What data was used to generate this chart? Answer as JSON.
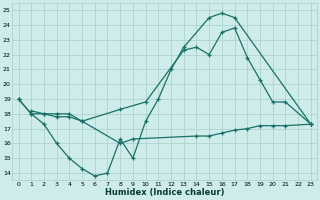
{
  "xlabel": "Humidex (Indice chaleur)",
  "background_color": "#cdecea",
  "grid_color": "#aacfcc",
  "line_color": "#1a7068",
  "xlim": [
    -0.5,
    23.5
  ],
  "ylim": [
    13.5,
    25.5
  ],
  "xticks": [
    0,
    1,
    2,
    3,
    4,
    5,
    6,
    7,
    8,
    9,
    10,
    11,
    12,
    13,
    14,
    15,
    16,
    17,
    18,
    19,
    20,
    21,
    22,
    23
  ],
  "yticks": [
    14,
    15,
    16,
    17,
    18,
    19,
    20,
    21,
    22,
    23,
    24,
    25
  ],
  "curve1_x": [
    0,
    1,
    2,
    3,
    4,
    5,
    6,
    7,
    8,
    9,
    10,
    11,
    12,
    13,
    15,
    16,
    17,
    23
  ],
  "curve1_y": [
    19,
    18,
    17.3,
    16,
    15,
    14.3,
    13.8,
    14.0,
    16.3,
    15.0,
    17.5,
    19.0,
    21.0,
    22.5,
    24.5,
    24.8,
    24.5,
    17.3
  ],
  "curve2_x": [
    0,
    1,
    2,
    3,
    4,
    5,
    8,
    10,
    13,
    14,
    15,
    16,
    17,
    18,
    19,
    20,
    21,
    23
  ],
  "curve2_y": [
    19,
    18,
    18,
    18,
    18,
    17.5,
    18.3,
    18.8,
    22.3,
    22.5,
    22.0,
    23.5,
    23.8,
    21.8,
    20.3,
    18.8,
    18.8,
    17.3
  ],
  "curve3_x": [
    1,
    2,
    3,
    4,
    5,
    8,
    9,
    14,
    15,
    16,
    17,
    18,
    19,
    20,
    21,
    23
  ],
  "curve3_y": [
    18.2,
    18.0,
    17.8,
    17.8,
    17.5,
    16.0,
    16.3,
    16.5,
    16.5,
    16.7,
    16.9,
    17.0,
    17.2,
    17.2,
    17.2,
    17.3
  ]
}
